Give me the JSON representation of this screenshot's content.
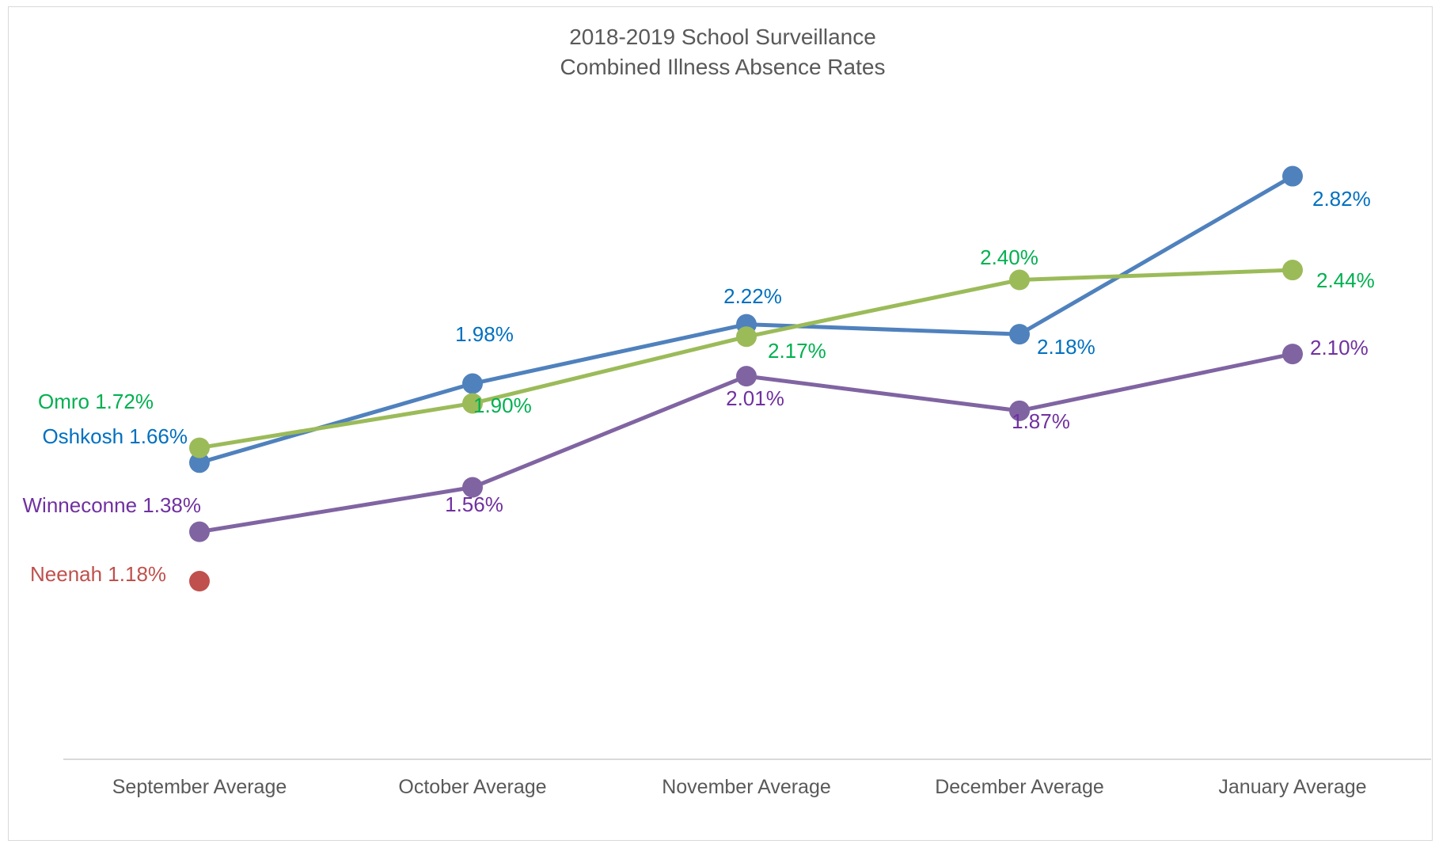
{
  "chart_data": {
    "type": "line",
    "title": "2018-2019 School Surveillance",
    "subtitle": "Combined Illness Absence Rates",
    "categories": [
      "September Average",
      "October Average",
      "November Average",
      "December Average",
      "January Average"
    ],
    "ylim": [
      0.5,
      3.2
    ],
    "grid": false,
    "legend": "none",
    "series": [
      {
        "name": "Omro",
        "color": "#9BBB59",
        "label_color": "#00B050",
        "values": [
          1.72,
          1.9,
          2.17,
          2.4,
          2.44
        ],
        "labels": [
          "Omro 1.72%",
          "1.90%",
          "2.17%",
          "2.40%",
          "2.44%"
        ]
      },
      {
        "name": "Oshkosh",
        "color": "#4F81BD",
        "label_color": "#0070C0",
        "values": [
          1.66,
          1.98,
          2.22,
          2.18,
          2.82
        ],
        "labels": [
          "Oshkosh 1.66%",
          "1.98%",
          "2.22%",
          "2.18%",
          "2.82%"
        ]
      },
      {
        "name": "Winneconne",
        "color": "#8064A2",
        "label_color": "#7030A0",
        "values": [
          1.38,
          1.56,
          2.01,
          1.87,
          2.1
        ],
        "labels": [
          "Winneconne 1.38%",
          "1.56%",
          "2.01%",
          "1.87%",
          "2.10%"
        ]
      },
      {
        "name": "Neenah",
        "color": "#C0504D",
        "label_color": "#C0504D",
        "values": [
          1.18,
          null,
          null,
          null,
          null
        ],
        "labels": [
          "Neenah 1.18%",
          "",
          "",
          "",
          ""
        ]
      }
    ]
  }
}
